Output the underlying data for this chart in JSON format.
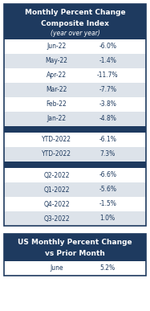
{
  "title_lines": [
    "Monthly Percent Change",
    "Composite Index",
    "(year over year)"
  ],
  "monthly_rows": [
    [
      "Jun-22",
      "-6.0%"
    ],
    [
      "May-22",
      "-1.4%"
    ],
    [
      "Apr-22",
      "-11.7%"
    ],
    [
      "Mar-22",
      "-7.7%"
    ],
    [
      "Feb-22",
      "-3.8%"
    ],
    [
      "Jan-22",
      "-4.8%"
    ]
  ],
  "ytd_rows": [
    [
      "YTD-2022",
      "-6.1%"
    ],
    [
      "YTD-2022",
      "7.3%"
    ]
  ],
  "quarterly_rows": [
    [
      "Q2-2022",
      "-6.6%"
    ],
    [
      "Q1-2022",
      "-5.6%"
    ],
    [
      "Q4-2022",
      "-1.5%"
    ],
    [
      "Q3-2022",
      "1.0%"
    ]
  ],
  "bottom_title_lines": [
    "US Monthly Percent Change",
    "vs Prior Month"
  ],
  "bottom_row": [
    "June",
    "5.2%"
  ],
  "header_bg": "#1e3a5f",
  "header_text": "#ffffff",
  "row_bg_white": "#ffffff",
  "row_bg_gray": "#dde3ea",
  "row_text": "#1e3a5f",
  "separator_bg": "#1e3a5f",
  "outer_border": "#1e3a5f",
  "bottom_header_bg": "#1e3a5f",
  "bottom_header_text": "#ffffff",
  "fig_bg": "#ffffff"
}
